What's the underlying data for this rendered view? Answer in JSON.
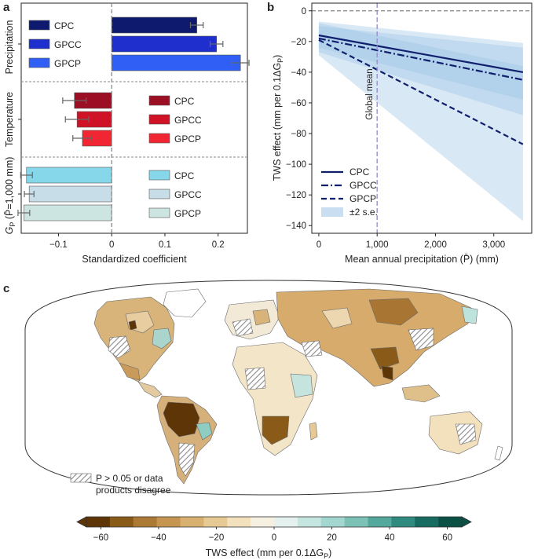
{
  "panels": {
    "a": "a",
    "b": "b",
    "c": "c"
  },
  "chart_data": [
    {
      "panel": "a",
      "type": "bar",
      "orientation": "horizontal",
      "xlabel": "Standardized coefficient",
      "xlim": [
        -0.17,
        0.255
      ],
      "xticks": [
        -0.1,
        0,
        0.1,
        0.2
      ],
      "xtick_labels": [
        "−0.1",
        "0",
        "0.1",
        "0.2"
      ],
      "groups": [
        {
          "name": "Precipitation",
          "legend_position": "left",
          "colors": [
            "#0d1a6e",
            "#1f2fce",
            "#2f5ff5"
          ],
          "bars": [
            {
              "product": "CPC",
              "value": 0.16,
              "error": 0.012
            },
            {
              "product": "GPCC",
              "value": 0.197,
              "error": 0.012
            },
            {
              "product": "GPCP",
              "value": 0.242,
              "error": 0.016
            }
          ]
        },
        {
          "name": "Temperature",
          "legend_position": "right",
          "colors": [
            "#9b0e24",
            "#d01226",
            "#f22532"
          ],
          "bars": [
            {
              "product": "CPC",
              "value": -0.07,
              "error": 0.022
            },
            {
              "product": "GPCC",
              "value": -0.065,
              "error": 0.022
            },
            {
              "product": "GPCP",
              "value": -0.055,
              "error": 0.018
            }
          ]
        },
        {
          "name": "G_P (P̄=1,000 mm)",
          "legend_position": "right",
          "colors": [
            "#86d7ea",
            "#c7dde8",
            "#cde5e0"
          ],
          "bars": [
            {
              "product": "CPC",
              "value": -0.16,
              "error": 0.011
            },
            {
              "product": "GPCC",
              "value": -0.155,
              "error": 0.009
            },
            {
              "product": "GPCP",
              "value": -0.165,
              "error": 0.011
            }
          ]
        }
      ],
      "group_labels": {
        "precip": "Precipitation",
        "temp": "Temperature",
        "gp_prefix": "G",
        "gp_sub": "P",
        "gp_suffix": " (P̄=1,000 mm)"
      }
    },
    {
      "panel": "b",
      "type": "line",
      "xlabel": "Mean annual precipitation (P̄) (mm)",
      "ylabel": "TWS effect (mm per 0.1ΔG",
      "ylabel_sub": "P",
      "ylabel_close": ")",
      "xlim": [
        -120,
        3650
      ],
      "ylim": [
        -145,
        5
      ],
      "xticks": [
        0,
        1000,
        2000,
        3000
      ],
      "xtick_labels": [
        "0",
        "1,000",
        "2,000",
        "3,000"
      ],
      "yticks": [
        0,
        -20,
        -40,
        -60,
        -80,
        -100,
        -120,
        -140
      ],
      "ytick_labels": [
        "0",
        "−20",
        "−40",
        "−60",
        "−80",
        "−100",
        "−120",
        "−140"
      ],
      "vline": {
        "x": 1000,
        "label": "Global mean"
      },
      "x": [
        0,
        3500
      ],
      "series": [
        {
          "name": "CPC",
          "style": "solid",
          "y": [
            -16,
            -40
          ],
          "band_upper": [
            -7,
            -21
          ],
          "band_lower": [
            -24,
            -58
          ]
        },
        {
          "name": "GPCC",
          "style": "dashdot",
          "y": [
            -18,
            -45
          ],
          "band_upper": [
            -10,
            -24
          ],
          "band_lower": [
            -27,
            -68
          ]
        },
        {
          "name": "GPCP",
          "style": "dashed",
          "y": [
            -19,
            -87
          ],
          "band_upper": [
            -8,
            -36
          ],
          "band_lower": [
            -29,
            -137
          ]
        }
      ],
      "band_legend": "±2 s.e.",
      "line_color": "#0f1f6e",
      "band_color": "#9cc3e6"
    },
    {
      "panel": "c",
      "type": "heatmap",
      "description_free": true,
      "colorbar": {
        "label": "TWS effect (mm per 0.1ΔG",
        "label_sub": "P",
        "label_close": ")",
        "ticks": [
          -60,
          -40,
          -20,
          0,
          20,
          40,
          60
        ],
        "tick_labels": [
          "−60",
          "−40",
          "−20",
          "0",
          "20",
          "40",
          "60"
        ],
        "min": -65,
        "max": 65,
        "colors": [
          "#5e3507",
          "#8a5a19",
          "#ad7a35",
          "#c69552",
          "#d8b06f",
          "#e7c994",
          "#f3e0bc",
          "#f6f0e1",
          "#e5f1ef",
          "#c4e5e0",
          "#a2d6ce",
          "#7dc2b7",
          "#55a89c",
          "#2f8a7f",
          "#176b60",
          "#0b5045"
        ]
      },
      "legend": {
        "hatch_text_line1": "P > 0.05 or data",
        "hatch_text_line2": "products disagree"
      }
    }
  ]
}
